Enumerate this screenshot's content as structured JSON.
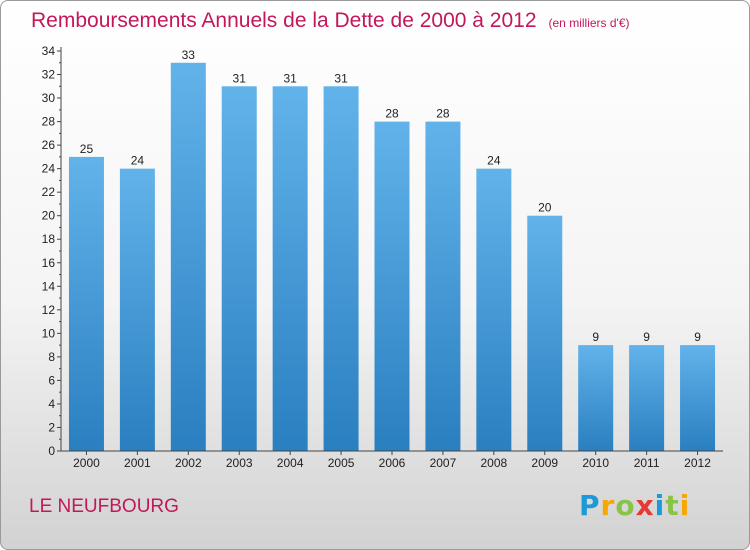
{
  "title": "Remboursements Annuels de la Dette de 2000 à 2012",
  "unit": "(en milliers d'€)",
  "commune": "LE NEUFBOURG",
  "logo": {
    "text": "Proxiti",
    "letters": [
      "P",
      "r",
      "o",
      "x",
      "i",
      "t",
      "i"
    ],
    "colors": [
      "#1a9ad6",
      "#f7a700",
      "#8bc34a",
      "#e53935",
      "#1a9ad6",
      "#8bc34a",
      "#f7a700"
    ]
  },
  "colors": {
    "bar_top": "#62b3ea",
    "bar_bottom": "#2a7fc0",
    "title": "#c2185b"
  },
  "chart_data": {
    "type": "bar",
    "categories": [
      "2000",
      "2001",
      "2002",
      "2003",
      "2004",
      "2005",
      "2006",
      "2007",
      "2008",
      "2009",
      "2010",
      "2011",
      "2012"
    ],
    "values": [
      25,
      24,
      33,
      31,
      31,
      31,
      28,
      28,
      24,
      20,
      9,
      9,
      9
    ],
    "title": "Remboursements Annuels de la Dette de 2000 à 2012",
    "xlabel": "",
    "ylabel": "",
    "ylim": [
      0,
      34
    ],
    "yticks": [
      0,
      2,
      4,
      6,
      8,
      10,
      12,
      14,
      16,
      18,
      20,
      22,
      24,
      26,
      28,
      30,
      32,
      34
    ],
    "grid": false,
    "legend": "none"
  }
}
